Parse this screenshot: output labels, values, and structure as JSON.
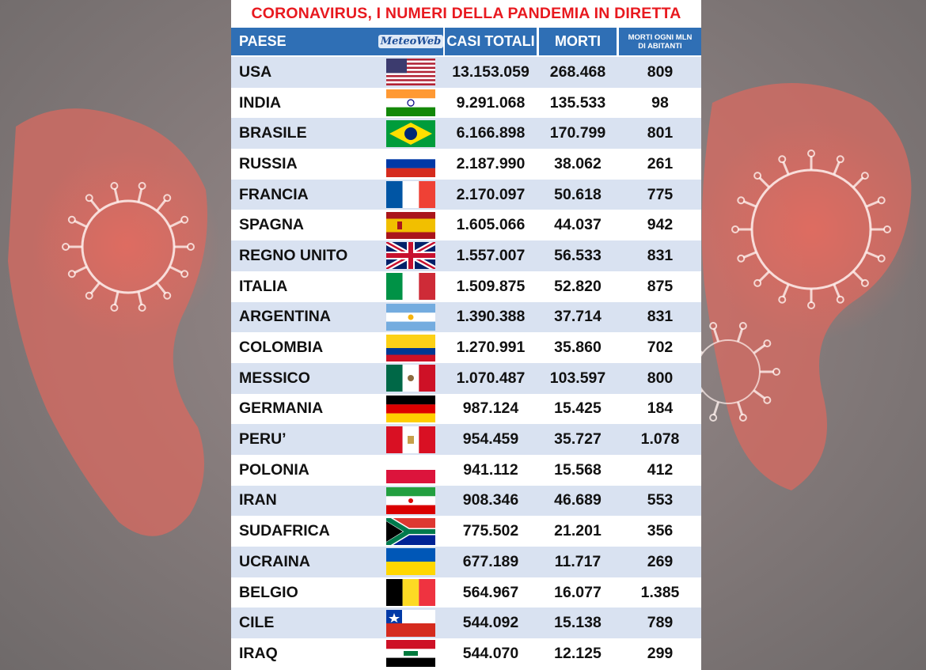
{
  "title": "CORONAVIRUS, I NUMERI DELLA PANDEMIA IN DIRETTA",
  "headers": {
    "paese": "PAESE",
    "logo": "MeteoWeb",
    "casi_totali": "CASI TOTALI",
    "morti": "MORTI",
    "morti_mln_line1": "MORTI OGNI MLN",
    "morti_mln_line2": "DI ABITANTI"
  },
  "colors": {
    "title": "#e8191f",
    "header_bg": "#2f6fb5",
    "row_shade": "#d9e2f1"
  },
  "chart_data": {
    "type": "table",
    "title": "CORONAVIRUS, I NUMERI DELLA PANDEMIA IN DIRETTA",
    "columns": [
      "PAESE",
      "CASI TOTALI",
      "MORTI",
      "MORTI OGNI MLN DI ABITANTI"
    ],
    "rows": [
      {
        "paese": "USA",
        "flag": "usa-flag",
        "casi": "13.153.059",
        "morti": "268.468",
        "mln": "809"
      },
      {
        "paese": "INDIA",
        "flag": "india-flag",
        "casi": "9.291.068",
        "morti": "135.533",
        "mln": "98"
      },
      {
        "paese": "BRASILE",
        "flag": "brazil-flag",
        "casi": "6.166.898",
        "morti": "170.799",
        "mln": "801"
      },
      {
        "paese": "RUSSIA",
        "flag": "russia-flag",
        "casi": "2.187.990",
        "morti": "38.062",
        "mln": "261"
      },
      {
        "paese": "FRANCIA",
        "flag": "france-flag",
        "casi": "2.170.097",
        "morti": "50.618",
        "mln": "775"
      },
      {
        "paese": "SPAGNA",
        "flag": "spain-flag",
        "casi": "1.605.066",
        "morti": "44.037",
        "mln": "942"
      },
      {
        "paese": "REGNO UNITO",
        "flag": "uk-flag",
        "casi": "1.557.007",
        "morti": "56.533",
        "mln": "831"
      },
      {
        "paese": "ITALIA",
        "flag": "italy-flag",
        "casi": "1.509.875",
        "morti": "52.820",
        "mln": "875"
      },
      {
        "paese": "ARGENTINA",
        "flag": "argentina-flag",
        "casi": "1.390.388",
        "morti": "37.714",
        "mln": "831"
      },
      {
        "paese": "COLOMBIA",
        "flag": "colombia-flag",
        "casi": "1.270.991",
        "morti": "35.860",
        "mln": "702"
      },
      {
        "paese": "MESSICO",
        "flag": "mexico-flag",
        "casi": "1.070.487",
        "morti": "103.597",
        "mln": "800"
      },
      {
        "paese": "GERMANIA",
        "flag": "germany-flag",
        "casi": "987.124",
        "morti": "15.425",
        "mln": "184"
      },
      {
        "paese": "PERU’",
        "flag": "peru-flag",
        "casi": "954.459",
        "morti": "35.727",
        "mln": "1.078"
      },
      {
        "paese": "POLONIA",
        "flag": "poland-flag",
        "casi": "941.112",
        "morti": "15.568",
        "mln": "412"
      },
      {
        "paese": "IRAN",
        "flag": "iran-flag",
        "casi": "908.346",
        "morti": "46.689",
        "mln": "553"
      },
      {
        "paese": "SUDAFRICA",
        "flag": "south-africa-flag",
        "casi": "775.502",
        "morti": "21.201",
        "mln": "356"
      },
      {
        "paese": "UCRAINA",
        "flag": "ukraine-flag",
        "casi": "677.189",
        "morti": "11.717",
        "mln": "269"
      },
      {
        "paese": "BELGIO",
        "flag": "belgium-flag",
        "casi": "564.967",
        "morti": "16.077",
        "mln": "1.385"
      },
      {
        "paese": "CILE",
        "flag": "chile-flag",
        "casi": "544.092",
        "morti": "15.138",
        "mln": "789"
      },
      {
        "paese": "IRAQ",
        "flag": "iraq-flag",
        "casi": "544.070",
        "morti": "12.125",
        "mln": "299"
      }
    ]
  }
}
